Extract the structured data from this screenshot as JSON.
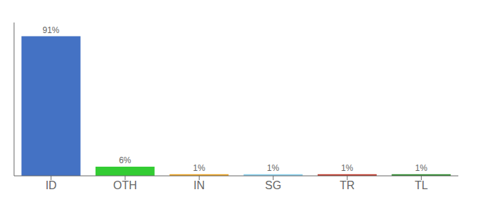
{
  "chart_data": {
    "type": "bar",
    "categories": [
      "ID",
      "OTH",
      "IN",
      "SG",
      "TR",
      "TL"
    ],
    "values": [
      91,
      6,
      1,
      1,
      1,
      1
    ],
    "value_labels": [
      "91%",
      "6%",
      "1%",
      "1%",
      "1%",
      "1%"
    ],
    "data_labels": true,
    "colors": [
      "#4472C4",
      "#33CC33",
      "#E8A020",
      "#87CEEB",
      "#C0392B",
      "#2E8B2E"
    ],
    "ylim": [
      0,
      100
    ],
    "tick_labels": "x",
    "grid": false
  }
}
